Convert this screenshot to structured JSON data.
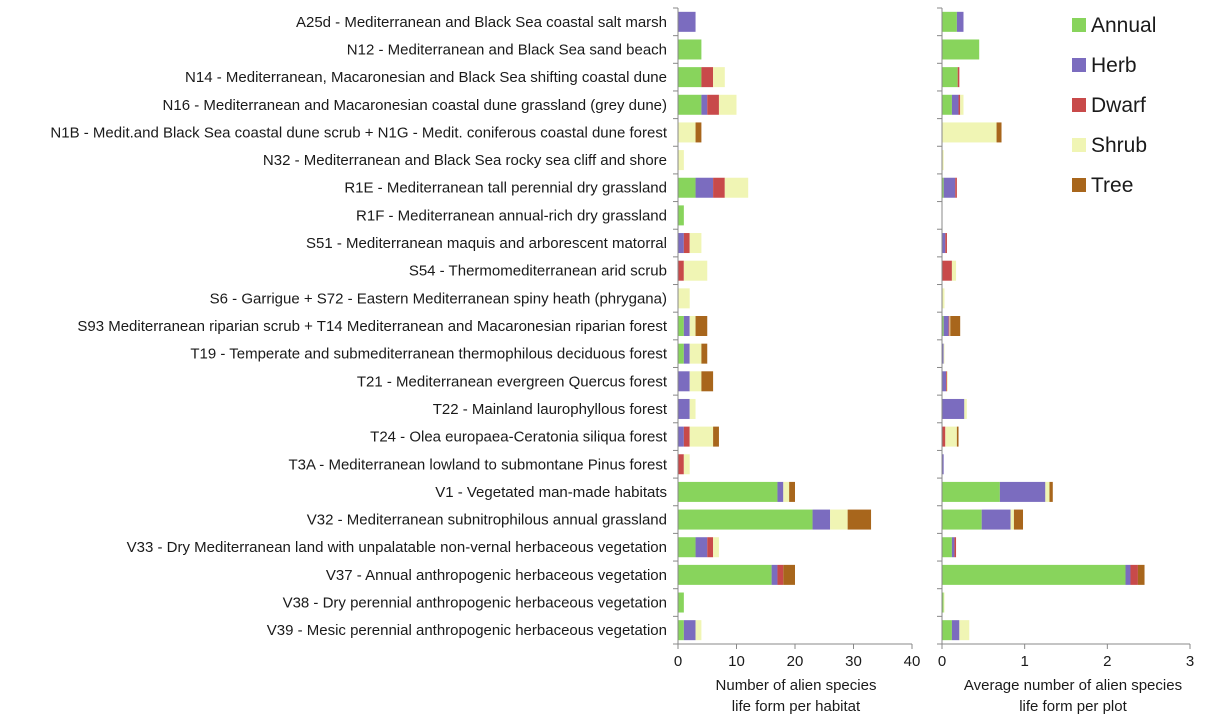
{
  "chart_data": {
    "type": "bar",
    "orientation": "horizontal",
    "stacked": true,
    "colors": {
      "Annual": "#88d45c",
      "Herb": "#7b6cbf",
      "Dwarf": "#c84a4a",
      "Shrub": "#f0f5b4",
      "Tree": "#a8661c"
    },
    "legend": {
      "position": "top-right",
      "entries": [
        "Annual",
        "Herb",
        "Dwarf",
        "Shrub",
        "Tree"
      ]
    },
    "categories": [
      "A25d - Mediterranean and Black Sea coastal salt marsh",
      "N12 - Mediterranean and Black Sea sand beach",
      "N14 - Mediterranean, Macaronesian and Black Sea shifting coastal dune",
      "N16 - Mediterranean and Macaronesian coastal dune grassland (grey dune)",
      "N1B - Medit.and Black Sea coastal dune scrub + N1G - Medit. coniferous coastal dune forest",
      "N32 - Mediterranean and Black Sea rocky sea cliff and shore",
      "R1E - Mediterranean tall perennial dry grassland",
      "R1F - Mediterranean annual-rich dry grassland",
      "S51 - Mediterranean maquis and arborescent matorral",
      "S54 - Thermomediterranean arid scrub",
      "S6 - Garrigue + S72 - Eastern Mediterranean spiny heath (phrygana)",
      "S93 Mediterranean riparian scrub + T14 Mediterranean and Macaronesian riparian forest",
      "T19 - Temperate and submediterranean thermophilous deciduous forest",
      "T21 - Mediterranean evergreen Quercus forest",
      "T22 - Mainland laurophyllous forest",
      "T24 - Olea europaea-Ceratonia siliqua forest",
      "T3A - Mediterranean lowland to submontane Pinus forest",
      "V1 - Vegetated man-made habitats",
      "V32 - Mediterranean subnitrophilous annual grassland",
      "V33 - Dry Mediterranean land with unpalatable non-vernal herbaceous vegetation",
      "V37 - Annual anthropogenic herbaceous vegetation",
      "V38 - Dry perennial anthropogenic herbaceous vegetation",
      "V39 - Mesic perennial anthropogenic herbaceous vegetation"
    ],
    "panels": [
      {
        "xlabel_line1": "Number of alien species",
        "xlabel_line2": "life form per habitat",
        "xlim": [
          0,
          40
        ],
        "xticks": [
          "0",
          "10",
          "20",
          "30",
          "40"
        ],
        "tick_values": [
          0,
          10,
          20,
          30,
          40
        ],
        "series": [
          {
            "name": "Annual",
            "values": [
              0,
              4,
              4,
              4,
              0,
              0,
              3,
              1,
              0,
              0,
              0,
              1,
              1,
              0,
              0,
              0,
              0,
              17,
              23,
              3,
              16,
              1,
              1
            ]
          },
          {
            "name": "Herb",
            "values": [
              3,
              0,
              0,
              1,
              0,
              0,
              3,
              0,
              1,
              0,
              0,
              1,
              1,
              2,
              2,
              1,
              0,
              1,
              3,
              2,
              1,
              0,
              2
            ]
          },
          {
            "name": "Dwarf",
            "values": [
              0,
              0,
              2,
              2,
              0,
              0,
              2,
              0,
              1,
              1,
              0,
              0,
              0,
              0,
              0,
              1,
              1,
              0,
              0,
              1,
              1,
              0,
              0
            ]
          },
          {
            "name": "Shrub",
            "values": [
              0,
              0,
              2,
              3,
              3,
              1,
              4,
              0,
              2,
              4,
              2,
              1,
              2,
              2,
              1,
              4,
              1,
              1,
              3,
              1,
              0,
              0,
              1
            ]
          },
          {
            "name": "Tree",
            "values": [
              0,
              0,
              0,
              0,
              1,
              0,
              0,
              0,
              0,
              0,
              0,
              2,
              1,
              2,
              0,
              1,
              0,
              1,
              4,
              0,
              2,
              0,
              0
            ]
          }
        ]
      },
      {
        "xlabel_line1": "Average number of alien species",
        "xlabel_line2": "life form per plot",
        "xlim": [
          0,
          3
        ],
        "xticks": [
          "0",
          "1",
          "2",
          "3"
        ],
        "tick_values": [
          0,
          1,
          2,
          3
        ],
        "series": [
          {
            "name": "Annual",
            "values": [
              0.18,
              0.45,
              0.19,
              0.12,
              0,
              0,
              0.02,
              0,
              0,
              0,
              0,
              0.02,
              0,
              0,
              0,
              0,
              0,
              0.7,
              0.48,
              0.12,
              2.22,
              0.02,
              0.12
            ]
          },
          {
            "name": "Herb",
            "values": [
              0.08,
              0,
              0,
              0.08,
              0,
              0,
              0.14,
              0,
              0.04,
              0,
              0,
              0.06,
              0.02,
              0.05,
              0.27,
              0,
              0.02,
              0.55,
              0.35,
              0.03,
              0.06,
              0,
              0.09
            ]
          },
          {
            "name": "Dwarf",
            "values": [
              0,
              0,
              0.02,
              0.02,
              0,
              0,
              0.02,
              0,
              0.02,
              0.12,
              0,
              0.01,
              0,
              0.01,
              0,
              0.04,
              0,
              0,
              0,
              0.02,
              0.09,
              0,
              0
            ]
          },
          {
            "name": "Shrub",
            "values": [
              0,
              0,
              0,
              0.04,
              0.66,
              0.02,
              0,
              0,
              0,
              0.05,
              0.03,
              0.01,
              0.01,
              0.01,
              0.03,
              0.14,
              0,
              0.05,
              0.04,
              0,
              0,
              0.01,
              0.12
            ]
          },
          {
            "name": "Tree",
            "values": [
              0,
              0,
              0,
              0,
              0.06,
              0,
              0,
              0,
              0,
              0,
              0,
              0.12,
              0,
              0,
              0,
              0.02,
              0,
              0.04,
              0.11,
              0,
              0.08,
              0,
              0
            ]
          }
        ]
      }
    ]
  }
}
